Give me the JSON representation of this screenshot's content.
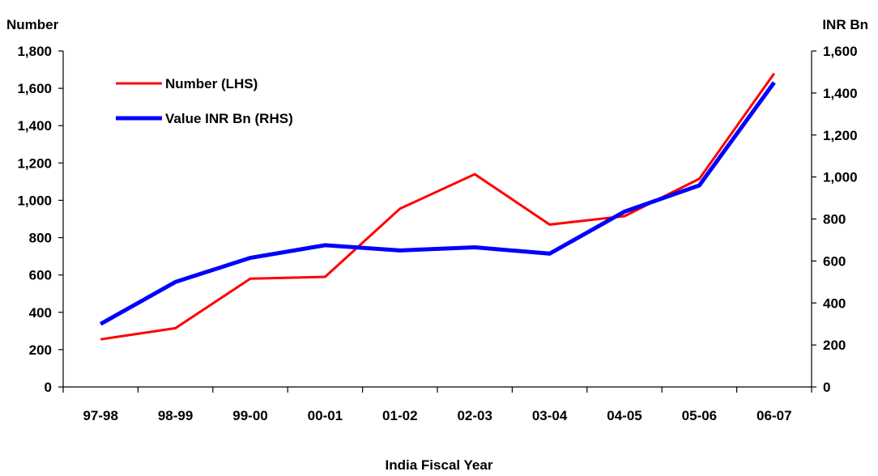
{
  "chart_data": {
    "type": "line",
    "title": "",
    "xlabel": "India Fiscal Year",
    "ylabel_left": "Number",
    "ylabel_right": "INR Bn",
    "categories": [
      "97-98",
      "98-99",
      "99-00",
      "00-01",
      "01-02",
      "02-03",
      "03-04",
      "04-05",
      "05-06",
      "06-07"
    ],
    "ylim_left": [
      0,
      1800
    ],
    "yticks_left": [
      "0",
      "200",
      "400",
      "600",
      "800",
      "1,000",
      "1,200",
      "1,400",
      "1,600",
      "1,800"
    ],
    "ylim_right": [
      0,
      1600
    ],
    "yticks_right": [
      "0",
      "200",
      "400",
      "600",
      "800",
      "1,000",
      "1,200",
      "1,400",
      "1,600"
    ],
    "grid": false,
    "legend_position": "top-left",
    "series": [
      {
        "name": "Number (LHS)",
        "axis": "left",
        "color": "#ff0000",
        "values": [
          255,
          315,
          580,
          590,
          955,
          1140,
          870,
          915,
          1115,
          1680
        ]
      },
      {
        "name": "Value INR Bn (RHS)",
        "axis": "right",
        "color": "#0000ff",
        "values": [
          300,
          500,
          615,
          675,
          650,
          665,
          635,
          835,
          960,
          1450
        ]
      }
    ]
  }
}
